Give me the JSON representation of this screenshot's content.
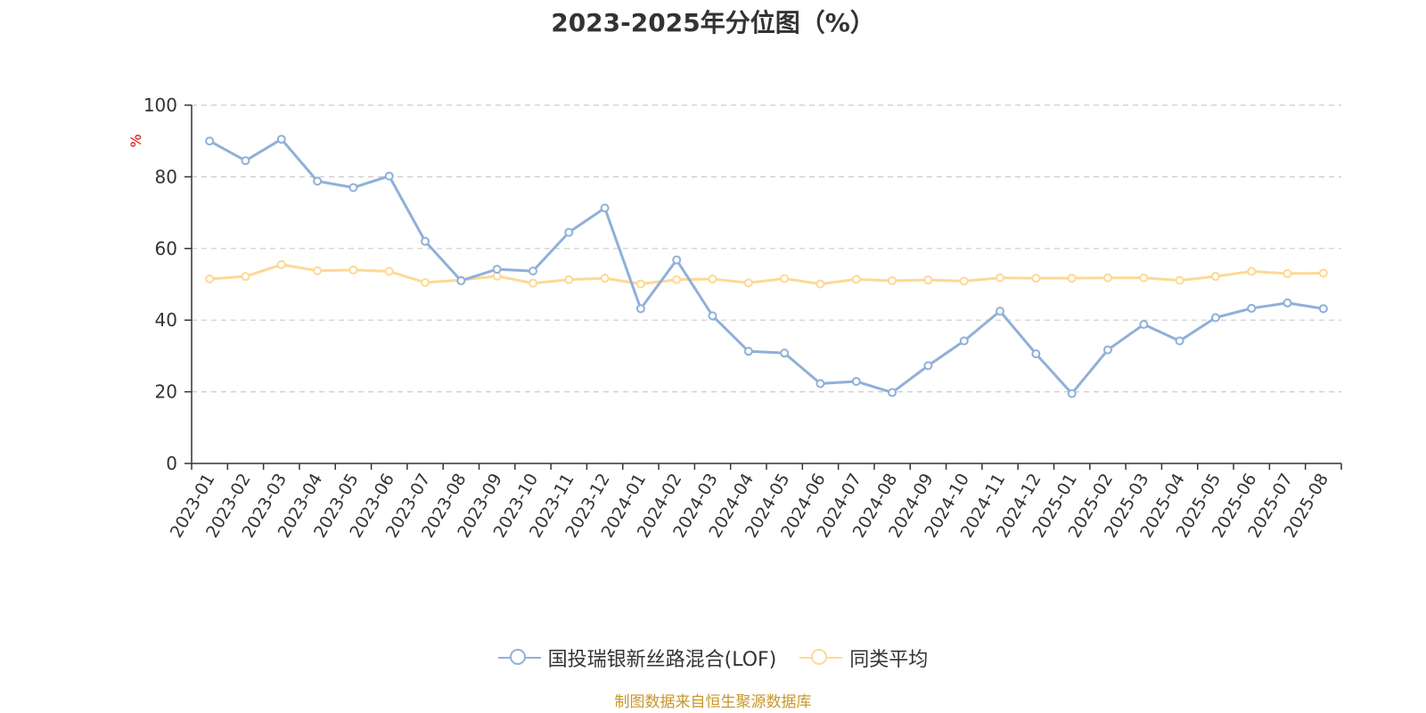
{
  "title": "2023-2025年分位图（%）",
  "source": "制图数据来自恒生聚源数据库",
  "chart_data": {
    "type": "line",
    "title": "2023-2025年分位图（%）",
    "ylabel": "%",
    "xlabel": "",
    "ylim": [
      0,
      100
    ],
    "yticks": [
      0,
      20,
      40,
      60,
      80,
      100
    ],
    "grid": true,
    "legend_position": "bottom",
    "categories": [
      "2023-01",
      "2023-02",
      "2023-03",
      "2023-04",
      "2023-05",
      "2023-06",
      "2023-07",
      "2023-08",
      "2023-09",
      "2023-10",
      "2023-11",
      "2023-12",
      "2024-01",
      "2024-02",
      "2024-03",
      "2024-04",
      "2024-05",
      "2024-06",
      "2024-07",
      "2024-08",
      "2024-09",
      "2024-10",
      "2024-11",
      "2024-12",
      "2025-01",
      "2025-02",
      "2025-03",
      "2025-04",
      "2025-05",
      "2025-06",
      "2025-07",
      "2025-08"
    ],
    "series": [
      {
        "name": "国投瑞银新丝路混合(LOF)",
        "color": "#8fb0d9",
        "values": [
          90,
          84.5,
          90.5,
          78.8,
          77,
          80.2,
          62,
          51,
          54.2,
          53.7,
          64.5,
          71.3,
          43.2,
          56.8,
          41.2,
          31.3,
          30.8,
          22.3,
          22.9,
          19.8,
          27.3,
          34.2,
          42.5,
          30.6,
          19.5,
          31.7,
          38.8,
          34.2,
          40.7,
          43.3,
          44.8,
          43.2
        ]
      },
      {
        "name": "同类平均",
        "color": "#fdd994",
        "values": [
          51.5,
          52.2,
          55.5,
          53.8,
          54,
          53.6,
          50.5,
          51.2,
          52.3,
          50.3,
          51.3,
          51.7,
          50.1,
          51.3,
          51.5,
          50.4,
          51.6,
          50.1,
          51.4,
          51,
          51.2,
          50.9,
          51.8,
          51.7,
          51.7,
          51.8,
          51.8,
          51.1,
          52.2,
          53.6,
          53,
          53.1
        ]
      }
    ]
  }
}
